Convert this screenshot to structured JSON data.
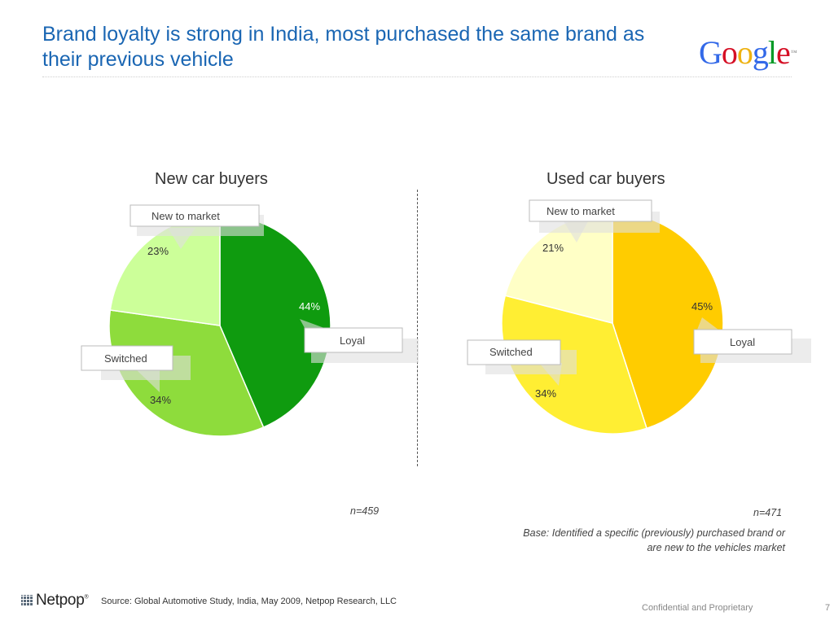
{
  "header": {
    "title": "Brand loyalty is strong in India, most purchased the same brand as their previous vehicle",
    "logo_text": "Google"
  },
  "chart_data": [
    {
      "type": "pie",
      "title": "New car buyers",
      "categories": [
        "Loyal",
        "Switched",
        "New to market"
      ],
      "values": [
        44,
        34,
        23
      ],
      "data_labels": [
        "44%",
        "34%",
        "23%"
      ],
      "colors": [
        "#0f9b0f",
        "#8edc3c",
        "#ccff99"
      ],
      "n_label": "n=459"
    },
    {
      "type": "pie",
      "title": "Used car buyers",
      "categories": [
        "Loyal",
        "Switched",
        "New to market"
      ],
      "values": [
        45,
        34,
        21
      ],
      "data_labels": [
        "45%",
        "34%",
        "21%"
      ],
      "colors": [
        "#ffcc00",
        "#ffee33",
        "#ffffc6"
      ],
      "n_label": "n=471"
    }
  ],
  "base_note": "Base: Identified a specific (previously) purchased brand or are new to the vehicles market",
  "footer": {
    "brand": "Netpop",
    "source": "Source: Global Automotive Study,  India, May 2009, Netpop Research, LLC",
    "confidential": "Confidential and Proprietary",
    "page_number": "7"
  },
  "colors": {
    "title": "#1a66b3",
    "google": [
      "#3369e8",
      "#d50f25",
      "#eeb211",
      "#3369e8",
      "#009925",
      "#d50f25"
    ]
  }
}
